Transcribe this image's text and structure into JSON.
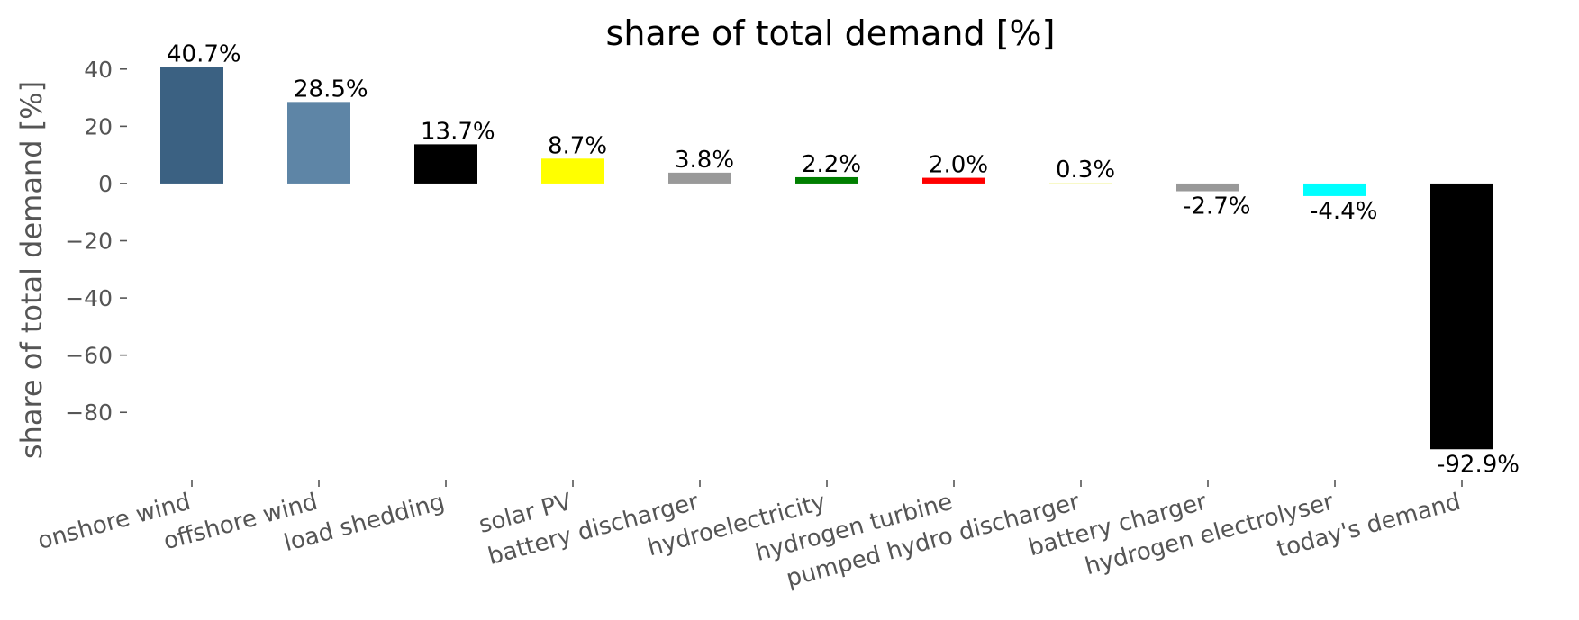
{
  "chart_data": {
    "type": "bar",
    "title": "share of total demand [%]",
    "xlabel": "",
    "ylabel": "share of total demand [%]",
    "ylim": [
      -101,
      50
    ],
    "yticks": [
      40,
      20,
      0,
      -20,
      -40,
      -60,
      -80
    ],
    "ytick_labels": [
      "40",
      "20",
      "0",
      "−20",
      "−40",
      "−60",
      "−80"
    ],
    "grid": false,
    "categories": [
      "onshore wind",
      "offshore wind",
      "load shedding",
      "solar PV",
      "battery discharger",
      "hydroelectricity",
      "hydrogen turbine",
      "pumped hydro discharger",
      "battery charger",
      "hydrogen electrolyser",
      "today's demand"
    ],
    "values": [
      40.7,
      28.5,
      13.7,
      8.7,
      3.8,
      2.2,
      2.0,
      0.3,
      -2.7,
      -4.4,
      -92.9
    ],
    "labels": [
      "40.7%",
      "28.5%",
      "13.7%",
      "8.7%",
      "3.8%",
      "2.2%",
      "2.0%",
      "0.3%",
      "-2.7%",
      "-4.4%",
      "-92.9%"
    ],
    "colors": [
      "#3b6182",
      "#5e85a6",
      "#000000",
      "#ffff00",
      "#999999",
      "#007f00",
      "#ff0000",
      "#f7f9c4",
      "#999999",
      "#00ffff",
      "#000000"
    ]
  }
}
